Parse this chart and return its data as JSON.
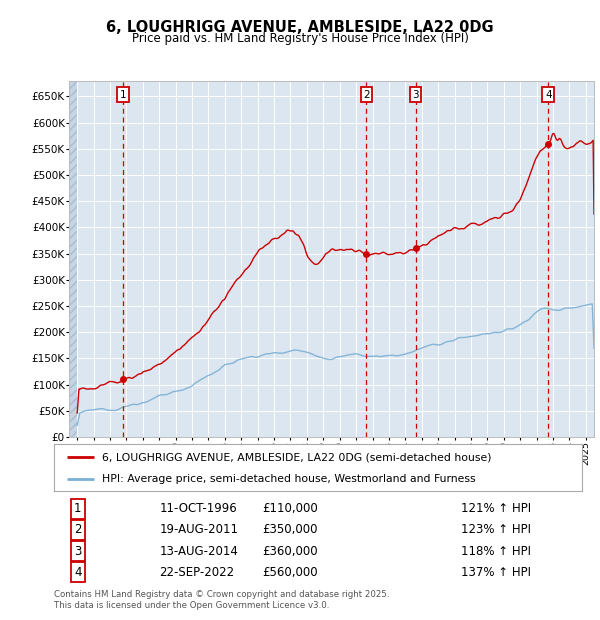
{
  "title": "6, LOUGHRIGG AVENUE, AMBLESIDE, LA22 0DG",
  "subtitle": "Price paid vs. HM Land Registry's House Price Index (HPI)",
  "legend_line1": "6, LOUGHRIGG AVENUE, AMBLESIDE, LA22 0DG (semi-detached house)",
  "legend_line2": "HPI: Average price, semi-detached house, Westmorland and Furness",
  "footer": "Contains HM Land Registry data © Crown copyright and database right 2025.\nThis data is licensed under the Open Government Licence v3.0.",
  "sales": [
    {
      "num": 1,
      "date": "11-OCT-1996",
      "x": 1996.78,
      "price": 110000,
      "label": "£110,000",
      "pct": "121% ↑ HPI"
    },
    {
      "num": 2,
      "date": "19-AUG-2011",
      "x": 2011.63,
      "price": 350000,
      "label": "£350,000",
      "pct": "123% ↑ HPI"
    },
    {
      "num": 3,
      "date": "13-AUG-2014",
      "x": 2014.62,
      "price": 360000,
      "label": "£360,000",
      "pct": "118% ↑ HPI"
    },
    {
      "num": 4,
      "date": "22-SEP-2022",
      "x": 2022.72,
      "price": 560000,
      "label": "£560,000",
      "pct": "137% ↑ HPI"
    }
  ],
  "ylim": [
    0,
    680000
  ],
  "yticks": [
    0,
    50000,
    100000,
    150000,
    200000,
    250000,
    300000,
    350000,
    400000,
    450000,
    500000,
    550000,
    600000,
    650000
  ],
  "xlim": [
    1993.5,
    2025.5
  ],
  "bg_color": "#dce6f1",
  "red_line_color": "#cc0000",
  "blue_line_color": "#7bafd4",
  "vline_color": "#cc0000",
  "annotation_box_color": "#cc0000",
  "hpi_base_year": 1994,
  "hpi_base_val": 45000,
  "prop_base_val": 100000
}
